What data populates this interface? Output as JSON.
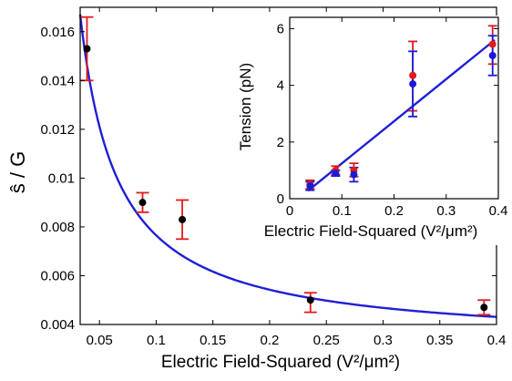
{
  "chart_data": [
    {
      "type": "scatter",
      "xlabel": "Electric Field-Squared (V²/μm²)",
      "ylabel": "ŝ / G",
      "xlim": [
        0.033,
        0.4
      ],
      "ylim": [
        0.004,
        0.017
      ],
      "xticks": [
        "0.05",
        "0.1",
        "0.15",
        "0.2",
        "0.25",
        "0.3",
        "0.35",
        "0.4"
      ],
      "xtick_values": [
        0.05,
        0.1,
        0.15,
        0.2,
        0.25,
        0.3,
        0.35,
        0.4
      ],
      "yticks": [
        "0.004",
        "0.006",
        "0.008",
        "0.01",
        "0.012",
        "0.014",
        "0.016"
      ],
      "ytick_values": [
        0.004,
        0.006,
        0.008,
        0.01,
        0.012,
        0.014,
        0.016
      ],
      "series": [
        {
          "marker_color": "#000000",
          "error_color": "#e31a1c",
          "x": [
            0.039,
            0.088,
            0.123,
            0.236,
            0.389
          ],
          "y": [
            0.0153,
            0.009,
            0.0083,
            0.005,
            0.0047
          ],
          "yerr_low": [
            0.014,
            0.0086,
            0.0075,
            0.0045,
            0.0044
          ],
          "yerr_high": [
            0.0166,
            0.0094,
            0.0091,
            0.0053,
            0.005
          ]
        }
      ],
      "fit": {
        "color": "#1f1fd6",
        "form": "a/x + b",
        "a": 0.0004459,
        "b": 0.003195
      }
    },
    {
      "type": "scatter",
      "xlabel": "Electric Field-Squared (V²/μm²)",
      "ylabel": "Tension (pN)",
      "xlim": [
        0,
        0.4
      ],
      "ylim": [
        0,
        6.4
      ],
      "xticks": [
        "0",
        "0.1",
        "0.2",
        "0.3",
        "0.4"
      ],
      "xtick_values": [
        0,
        0.1,
        0.2,
        0.3,
        0.4
      ],
      "yticks": [
        "0",
        "2",
        "4",
        "6"
      ],
      "ytick_values": [
        0,
        2,
        4,
        6
      ],
      "series": [
        {
          "color": "#e31a1c",
          "x": [
            0.039,
            0.088,
            0.123,
            0.236,
            0.389
          ],
          "y": [
            0.5,
            1.0,
            1.0,
            4.35,
            5.45
          ],
          "yerr_low": [
            0.35,
            0.85,
            0.78,
            3.1,
            4.75
          ],
          "yerr_high": [
            0.65,
            1.15,
            1.25,
            5.55,
            6.1
          ]
        },
        {
          "color": "#1a1ad6",
          "x": [
            0.039,
            0.088,
            0.123,
            0.236,
            0.389
          ],
          "y": [
            0.45,
            0.9,
            0.85,
            4.05,
            5.05
          ],
          "yerr_low": [
            0.3,
            0.8,
            0.6,
            2.9,
            4.35
          ],
          "yerr_high": [
            0.6,
            1.0,
            1.1,
            5.2,
            5.75
          ]
        }
      ],
      "fit": {
        "color": "#1f1fd6",
        "x": [
          0.035,
          0.393
        ],
        "y": [
          0.28,
          5.6
        ]
      }
    }
  ]
}
